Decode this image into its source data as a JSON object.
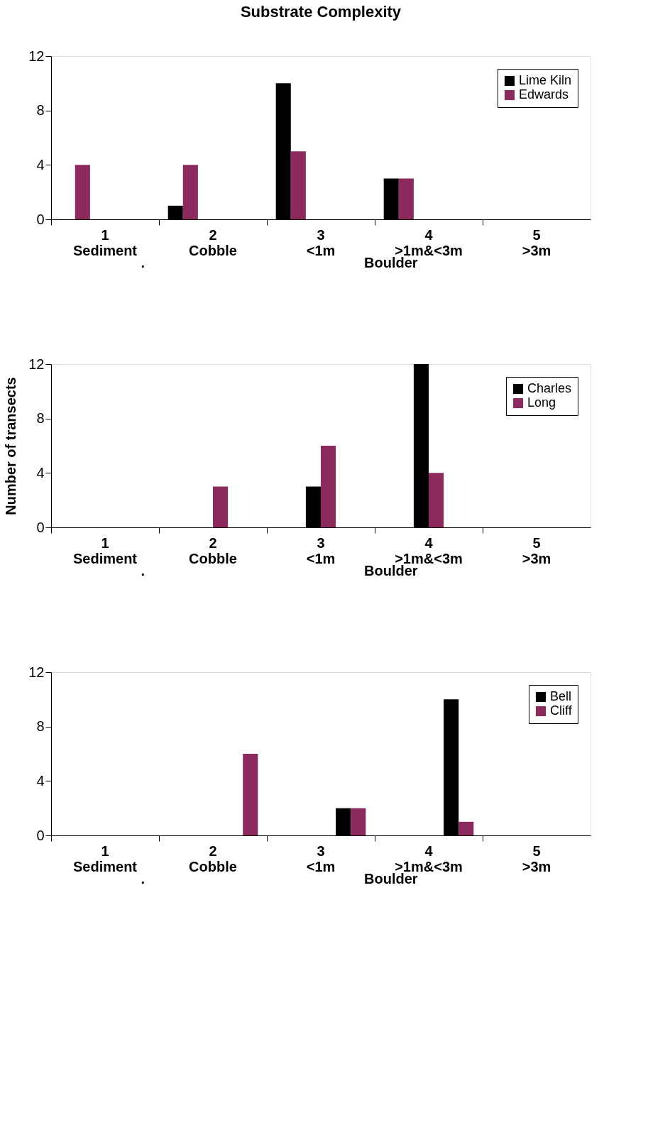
{
  "chart_data": [
    {
      "type": "bar",
      "title": "Substrate Complexity",
      "categories": [
        "1\nSediment",
        "2\nCobble",
        "3\n<1m",
        "4\n>1m&<3m",
        "5\n>3m"
      ],
      "series": [
        {
          "name": "Lime Kiln",
          "color": "#000000",
          "values": [
            0,
            1,
            10,
            3,
            0
          ]
        },
        {
          "name": "Edwards",
          "color": "#8c2a5e",
          "values": [
            4,
            4,
            5,
            3,
            0
          ]
        }
      ],
      "ylim": [
        0,
        12
      ],
      "yticks": [
        0,
        4,
        8,
        12
      ],
      "grid": false,
      "legend": "top right",
      "annotations": [
        ".",
        "Boulder"
      ]
    },
    {
      "type": "bar",
      "ylabel": "Number of transects",
      "categories": [
        "1\nSediment",
        "2\nCobble",
        "3\n<1m",
        "4\n>1m&<3m",
        "5\n>3m"
      ],
      "series": [
        {
          "name": "Charles",
          "color": "#000000",
          "values": [
            0,
            0,
            3,
            12,
            0
          ]
        },
        {
          "name": "Long",
          "color": "#8c2a5e",
          "values": [
            0,
            3,
            6,
            4,
            0
          ]
        }
      ],
      "ylim": [
        0,
        12
      ],
      "yticks": [
        0,
        4,
        8,
        12
      ],
      "grid": false,
      "legend": "top right",
      "annotations": [
        ".",
        "Boulder"
      ]
    },
    {
      "type": "bar",
      "categories": [
        "1\nSediment",
        "2\nCobble",
        "3\n<1m",
        "4\n>1m&<3m",
        "5\n>3m"
      ],
      "series": [
        {
          "name": "Bell",
          "color": "#000000",
          "values": [
            0,
            0,
            2,
            10,
            0
          ]
        },
        {
          "name": "Cliff",
          "color": "#8c2a5e",
          "values": [
            0,
            6,
            2,
            1,
            0
          ]
        }
      ],
      "ylim": [
        0,
        12
      ],
      "yticks": [
        0,
        4,
        8,
        12
      ],
      "grid": false,
      "legend": "top right",
      "annotations": [
        ".",
        "Boulder"
      ]
    }
  ]
}
